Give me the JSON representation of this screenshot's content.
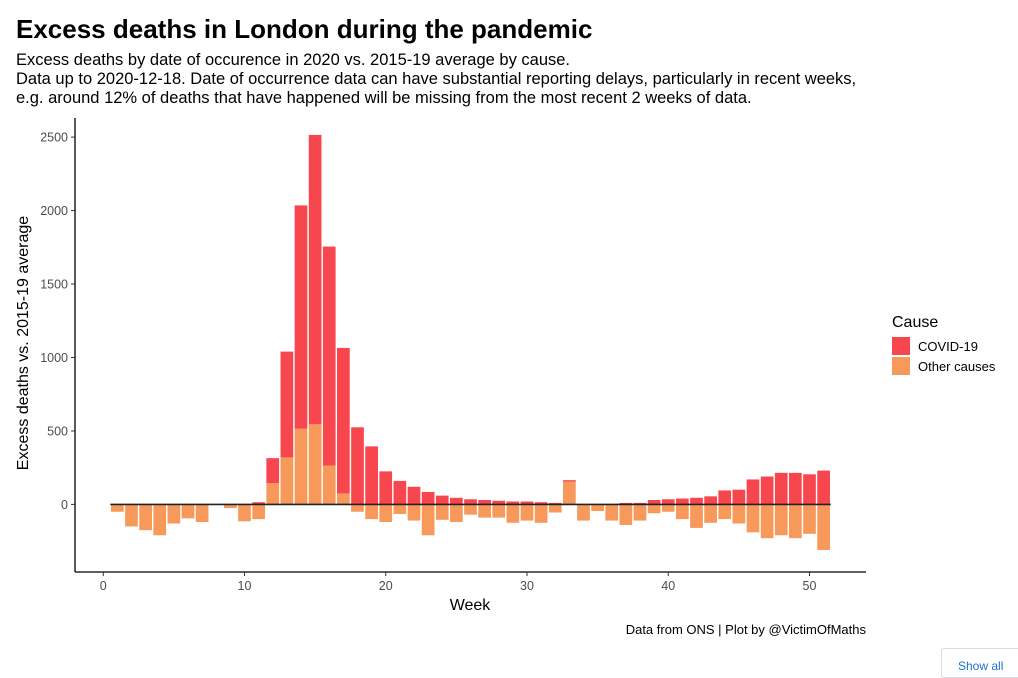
{
  "header": {
    "title": "Excess deaths in London during the pandemic",
    "subtitle_lines": [
      "Excess deaths by date of occurence in 2020 vs. 2015-19 average by cause.",
      "Data up to 2020-12-18. Date of occurrence data can have substantial reporting delays, particularly in recent weeks,",
      "e.g. around 12% of deaths that have happened will be missing from the most recent 2 weeks of data."
    ]
  },
  "caption": "Data from ONS | Plot by @VictimOfMaths",
  "show_all_button": {
    "label": "Show all"
  },
  "chart_data": {
    "type": "bar",
    "stacked": true,
    "xlabel": "Week",
    "ylabel": "Excess deaths vs. 2015-19 average",
    "xlim": [
      -2,
      54
    ],
    "ylim": [
      -460,
      2630
    ],
    "xticks": [
      0,
      10,
      20,
      30,
      40,
      50
    ],
    "yticks": [
      0,
      500,
      1000,
      1500,
      2000,
      2500
    ],
    "grid": false,
    "legend": {
      "title": "Cause",
      "position": "right"
    },
    "x": [
      1,
      2,
      3,
      4,
      5,
      6,
      7,
      8,
      9,
      10,
      11,
      12,
      13,
      14,
      15,
      16,
      17,
      18,
      19,
      20,
      21,
      22,
      23,
      24,
      25,
      26,
      27,
      28,
      29,
      30,
      31,
      32,
      33,
      34,
      35,
      36,
      37,
      38,
      39,
      40,
      41,
      42,
      43,
      44,
      45,
      46,
      47,
      48,
      49,
      50,
      51
    ],
    "series": [
      {
        "name": "COVID-19",
        "color": "#f8464f",
        "values": [
          0,
          0,
          0,
          0,
          0,
          0,
          0,
          0,
          0,
          0,
          15,
          170,
          720,
          1520,
          1970,
          1490,
          990,
          525,
          395,
          225,
          160,
          120,
          85,
          60,
          45,
          35,
          30,
          25,
          20,
          20,
          15,
          10,
          10,
          0,
          0,
          0,
          10,
          10,
          30,
          35,
          40,
          45,
          55,
          95,
          100,
          170,
          190,
          215,
          215,
          205,
          230
        ]
      },
      {
        "name": "Other causes",
        "color": "#f7995a",
        "values": [
          -50,
          -150,
          -175,
          -210,
          -130,
          -95,
          -120,
          0,
          -25,
          -115,
          -100,
          145,
          320,
          515,
          545,
          265,
          75,
          -50,
          -100,
          -120,
          -65,
          -110,
          -210,
          -105,
          -120,
          -70,
          -90,
          -90,
          -125,
          -110,
          -125,
          -55,
          155,
          -110,
          -45,
          -110,
          -140,
          -110,
          -60,
          -50,
          -100,
          -160,
          -125,
          -100,
          -130,
          -190,
          -230,
          -210,
          -230,
          -200,
          -310
        ]
      }
    ]
  }
}
